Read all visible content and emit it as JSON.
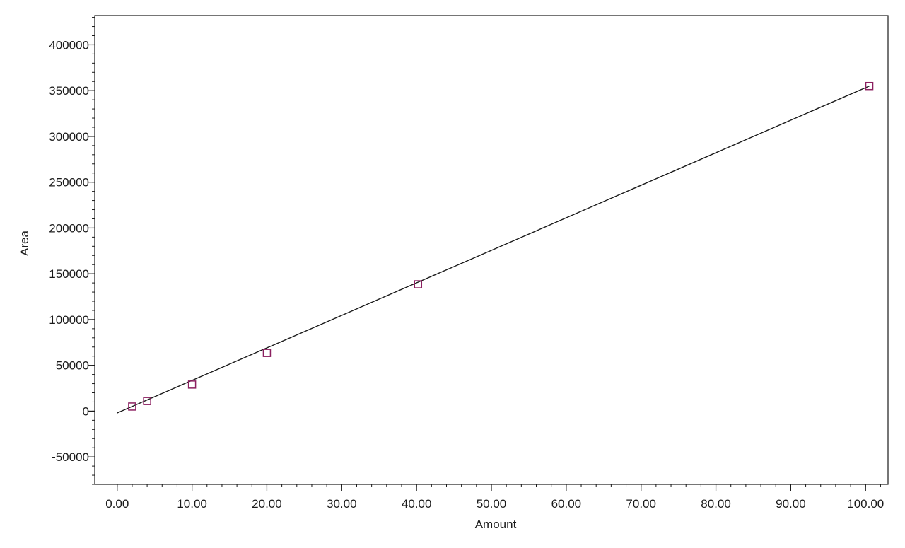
{
  "chart_data": {
    "type": "scatter",
    "title": "",
    "xlabel": "Amount",
    "ylabel": "Area",
    "xlim": [
      -3,
      103
    ],
    "ylim": [
      -80000,
      432000
    ],
    "x_ticks": [
      0,
      10,
      20,
      30,
      40,
      50,
      60,
      70,
      80,
      90,
      100
    ],
    "x_tick_labels": [
      "0.00",
      "10.00",
      "20.00",
      "30.00",
      "40.00",
      "50.00",
      "60.00",
      "70.00",
      "80.00",
      "90.00",
      "100.00"
    ],
    "y_ticks": [
      -50000,
      0,
      50000,
      100000,
      150000,
      200000,
      250000,
      300000,
      350000,
      400000
    ],
    "y_tick_labels": [
      "-50000",
      "0",
      "50000",
      "100000",
      "150000",
      "200000",
      "250000",
      "300000",
      "350000",
      "400000"
    ],
    "grid": false,
    "legend": "none",
    "series": [
      {
        "points": [
          {
            "x": 2.0,
            "y": 5000
          },
          {
            "x": 4.0,
            "y": 11000
          },
          {
            "x": 10.0,
            "y": 29000
          },
          {
            "x": 20.0,
            "y": 63500
          },
          {
            "x": 40.2,
            "y": 138500
          },
          {
            "x": 100.5,
            "y": 355000
          }
        ],
        "marker": "square-open",
        "color": "#8b2060"
      }
    ],
    "fit_line": {
      "type": "linear",
      "from": {
        "x": 0,
        "y": -2000
      },
      "to": {
        "x": 100.5,
        "y": 355000
      },
      "color": "#1a1a1a"
    }
  }
}
